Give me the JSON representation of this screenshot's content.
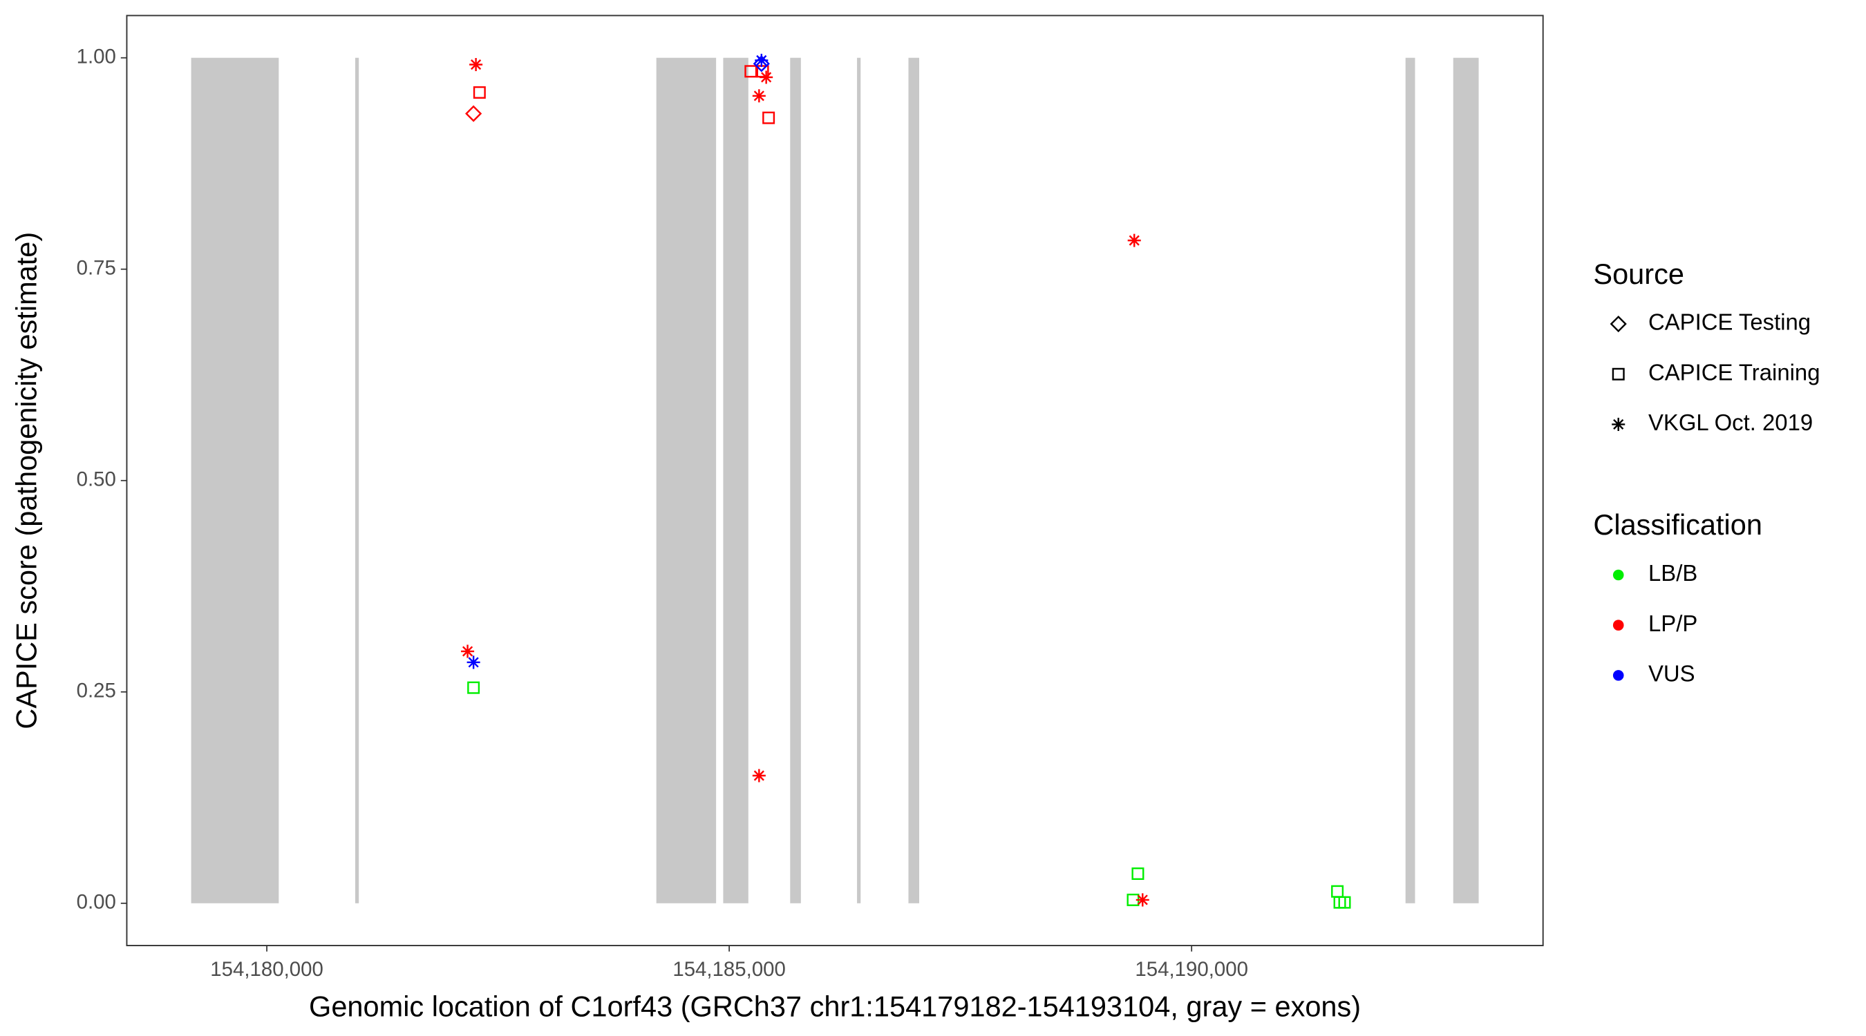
{
  "chart_data": {
    "type": "scatter",
    "x_label": "Genomic location of C1orf43 (GRCh37 chr1:154179182-154193104, gray = exons)",
    "y_label": "CAPICE score (pathogenicity estimate)",
    "xlim": [
      154178486,
      154193800
    ],
    "ylim": [
      -0.05,
      1.05
    ],
    "xticks": [
      {
        "value": 154180000,
        "label": "154,180,000"
      },
      {
        "value": 154185000,
        "label": "154,185,000"
      },
      {
        "value": 154190000,
        "label": "154,190,000"
      }
    ],
    "yticks": [
      {
        "value": 0,
        "label": "0.00"
      },
      {
        "value": 0.25,
        "label": "0.25"
      },
      {
        "value": 0.5,
        "label": "0.50"
      },
      {
        "value": 0.75,
        "label": "0.75"
      },
      {
        "value": 1,
        "label": "1.00"
      }
    ],
    "exon_color": "#c8c8c8",
    "exons": [
      {
        "start": 154179182,
        "end": 154180129
      },
      {
        "start": 154180956,
        "end": 154180995
      },
      {
        "start": 154184212,
        "end": 154184858
      },
      {
        "start": 154184935,
        "end": 154185207
      },
      {
        "start": 154185659,
        "end": 154185775
      },
      {
        "start": 154186382,
        "end": 154186421
      },
      {
        "start": 154186938,
        "end": 154187054
      },
      {
        "start": 154192313,
        "end": 154192416
      },
      {
        "start": 154192829,
        "end": 154193104
      }
    ],
    "legends": [
      {
        "title": "Source",
        "entries": [
          {
            "label": "CAPICE Testing",
            "shape": "diamond"
          },
          {
            "label": "CAPICE Training",
            "shape": "square"
          },
          {
            "label": "VKGL Oct. 2019",
            "shape": "star"
          }
        ]
      },
      {
        "title": "Classification",
        "entries": [
          {
            "label": "LB/B",
            "color": "#00ee00"
          },
          {
            "label": "LP/P",
            "color": "#ff0000"
          },
          {
            "label": "VUS",
            "color": "#0000ff"
          }
        ]
      }
    ],
    "points": [
      {
        "x": 154182261,
        "y": 0.992,
        "source": "VKGL Oct. 2019",
        "classification": "LP/P"
      },
      {
        "x": 154182300,
        "y": 0.959,
        "source": "CAPICE Training",
        "classification": "LP/P"
      },
      {
        "x": 154182235,
        "y": 0.934,
        "source": "CAPICE Testing",
        "classification": "LP/P"
      },
      {
        "x": 154182171,
        "y": 0.298,
        "source": "VKGL Oct. 2019",
        "classification": "LP/P"
      },
      {
        "x": 154182235,
        "y": 0.285,
        "source": "VKGL Oct. 2019",
        "classification": "VUS"
      },
      {
        "x": 154182235,
        "y": 0.255,
        "source": "CAPICE Training",
        "classification": "LB/B"
      },
      {
        "x": 154185233,
        "y": 0.984,
        "source": "CAPICE Training",
        "classification": "LP/P"
      },
      {
        "x": 154185362,
        "y": 0.984,
        "source": "CAPICE Training",
        "classification": "LP/P"
      },
      {
        "x": 154185400,
        "y": 0.977,
        "source": "VKGL Oct. 2019",
        "classification": "LP/P"
      },
      {
        "x": 154185323,
        "y": 0.955,
        "source": "VKGL Oct. 2019",
        "classification": "LP/P"
      },
      {
        "x": 154185426,
        "y": 0.929,
        "source": "CAPICE Training",
        "classification": "LP/P"
      },
      {
        "x": 154185349,
        "y": 0.993,
        "source": "CAPICE Testing",
        "classification": "VUS"
      },
      {
        "x": 154185349,
        "y": 0.997,
        "source": "VKGL Oct. 2019",
        "classification": "VUS"
      },
      {
        "x": 154185323,
        "y": 0.151,
        "source": "VKGL Oct. 2019",
        "classification": "LP/P"
      },
      {
        "x": 154189380,
        "y": 0.784,
        "source": "VKGL Oct. 2019",
        "classification": "LP/P"
      },
      {
        "x": 154189419,
        "y": 0.035,
        "source": "CAPICE Training",
        "classification": "LB/B"
      },
      {
        "x": 154189367,
        "y": 0.004,
        "source": "CAPICE Training",
        "classification": "LB/B"
      },
      {
        "x": 154189470,
        "y": 0.004,
        "source": "VKGL Oct. 2019",
        "classification": "LP/P"
      },
      {
        "x": 154191576,
        "y": 0.014,
        "source": "CAPICE Training",
        "classification": "LB/B"
      },
      {
        "x": 154191602,
        "y": 0.001,
        "source": "CAPICE Training",
        "classification": "LB/B"
      },
      {
        "x": 154191654,
        "y": 0.001,
        "source": "CAPICE Training",
        "classification": "LB/B"
      }
    ]
  }
}
